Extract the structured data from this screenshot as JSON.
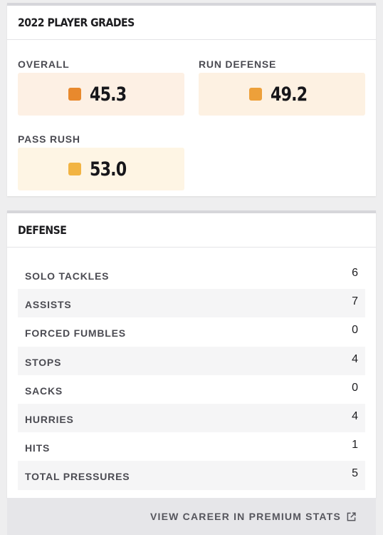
{
  "grades_card": {
    "title": "2022 PLAYER GRADES",
    "grades": [
      {
        "label": "OVERALL",
        "value": "45.3",
        "swatch_color": "#e8892d",
        "bg_color": "#fdf0e4"
      },
      {
        "label": "RUN DEFENSE",
        "value": "49.2",
        "swatch_color": "#eda03a",
        "bg_color": "#fdf1e2"
      },
      {
        "label": "PASS RUSH",
        "value": "53.0",
        "swatch_color": "#f2b443",
        "bg_color": "#fef5e4"
      }
    ]
  },
  "defense_card": {
    "title": "DEFENSE",
    "rows": [
      {
        "label": "SOLO TACKLES",
        "value": "6"
      },
      {
        "label": "ASSISTS",
        "value": "7"
      },
      {
        "label": "FORCED FUMBLES",
        "value": "0"
      },
      {
        "label": "STOPS",
        "value": "4"
      },
      {
        "label": "SACKS",
        "value": "0"
      },
      {
        "label": "HURRIES",
        "value": "4"
      },
      {
        "label": "HITS",
        "value": "1"
      },
      {
        "label": "TOTAL PRESSURES",
        "value": "5"
      }
    ]
  },
  "footer": {
    "link_label": "VIEW CAREER IN PREMIUM STATS",
    "icon": "external-link-icon"
  }
}
